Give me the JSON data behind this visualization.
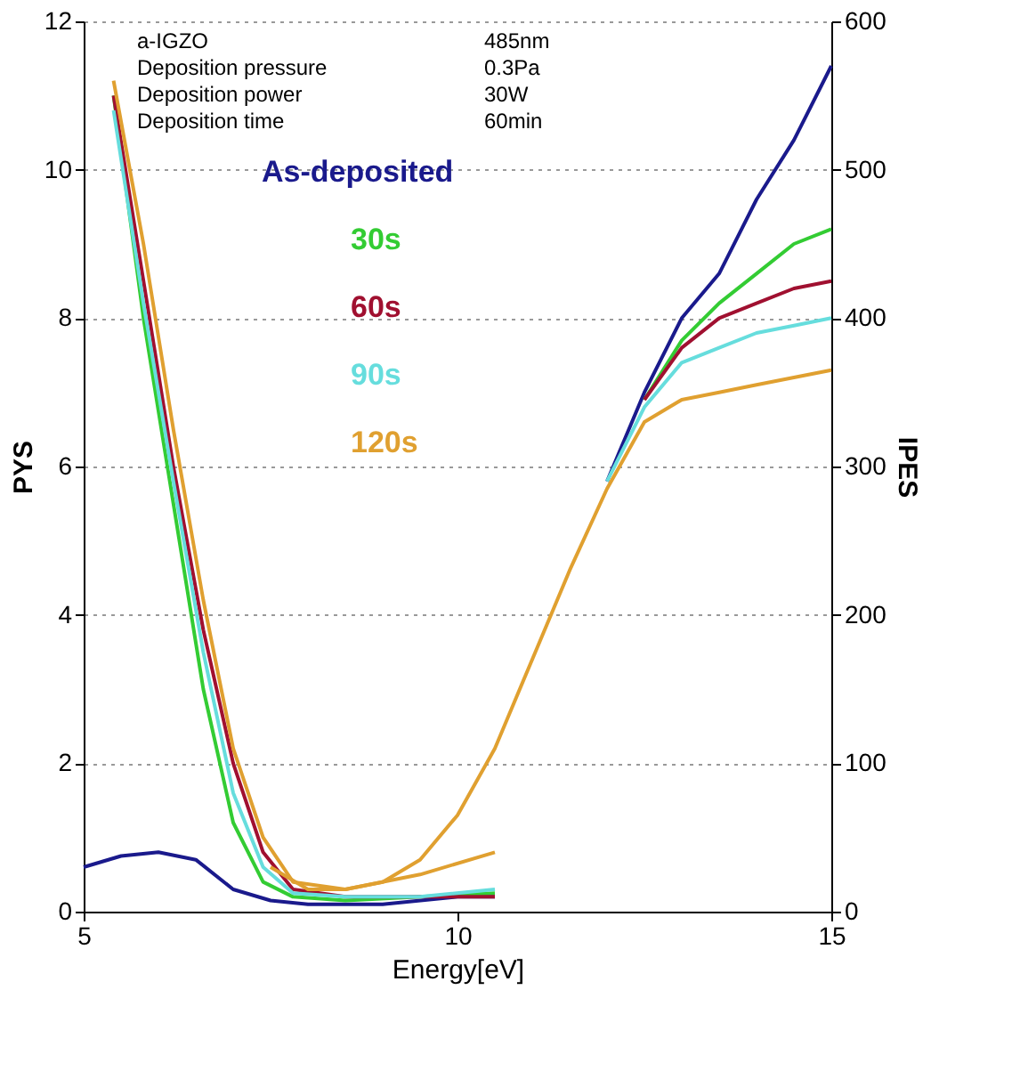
{
  "chart_data": {
    "type": "line",
    "xlabel": "Energy[eV]",
    "ylabel": "PYS",
    "y2label": "IPES",
    "xlim": [
      5,
      15
    ],
    "xticks": [
      5,
      10,
      15
    ],
    "ylim": [
      0,
      12
    ],
    "yticks": [
      0,
      2,
      4,
      6,
      8,
      10,
      12
    ],
    "y2lim": [
      0,
      600
    ],
    "y2ticks": [
      0,
      100,
      200,
      300,
      400,
      500,
      600
    ],
    "grid": "y",
    "legend": false,
    "marker": "none",
    "line_style": "solid",
    "annotations": [
      "a-IGZO",
      "485nm",
      "Deposition pressure",
      "0.3Pa",
      "Deposition power",
      "30W",
      "Deposition time",
      "60min"
    ],
    "series": [
      {
        "color": "#1a1a8c",
        "x": [
          5,
          5.5,
          6,
          6.5,
          7,
          7.5,
          8,
          9,
          10,
          10.5
        ],
        "values": [
          0.6,
          0.75,
          0.8,
          0.7,
          0.3,
          0.15,
          0.1,
          0.1,
          0.2,
          0.2
        ]
      },
      {
        "color": "#33cc33",
        "x": [
          5.4,
          5.8,
          6.2,
          6.6,
          7,
          7.4,
          7.8,
          8.5,
          9.5,
          10.5
        ],
        "values": [
          11,
          8,
          5.5,
          3,
          1.2,
          0.4,
          0.2,
          0.15,
          0.2,
          0.25
        ]
      },
      {
        "color": "#a01030",
        "x": [
          5.4,
          5.8,
          6.2,
          6.6,
          7,
          7.4,
          7.8,
          8.5,
          9.5,
          10.5
        ],
        "values": [
          11,
          8.5,
          6,
          3.8,
          2,
          0.8,
          0.3,
          0.2,
          0.2,
          0.2
        ]
      },
      {
        "color": "#66dddd",
        "x": [
          5.4,
          5.8,
          6.2,
          6.6,
          7,
          7.4,
          7.8,
          8.5,
          9.5,
          10.5
        ],
        "values": [
          10.8,
          8.2,
          5.8,
          3.5,
          1.6,
          0.6,
          0.25,
          0.2,
          0.2,
          0.3
        ]
      },
      {
        "color": "#e0a030",
        "x": [
          5.4,
          5.8,
          6.2,
          6.6,
          7,
          7.4,
          7.8,
          8.5,
          9.5,
          10.5
        ],
        "values": [
          11.2,
          9,
          6.5,
          4.2,
          2.2,
          1.0,
          0.4,
          0.3,
          0.5,
          0.8
        ]
      },
      {
        "name": "As-deposited",
        "axis": "y2",
        "color": "#1a1a8c",
        "x": [
          12,
          12.5,
          13,
          13.5,
          14,
          14.5,
          15
        ],
        "values": [
          290,
          350,
          400,
          430,
          480,
          520,
          570
        ]
      },
      {
        "name": "30s",
        "axis": "y2",
        "color": "#33cc33",
        "x": [
          12.5,
          13,
          13.5,
          14,
          14.5,
          15
        ],
        "values": [
          345,
          385,
          410,
          430,
          450,
          460
        ]
      },
      {
        "name": "60s",
        "axis": "y2",
        "color": "#a01030",
        "x": [
          12.5,
          13,
          13.5,
          14,
          14.5,
          15
        ],
        "values": [
          345,
          380,
          400,
          410,
          420,
          425
        ]
      },
      {
        "name": "90s",
        "axis": "y2",
        "color": "#66dddd",
        "x": [
          12,
          12.5,
          13,
          13.5,
          14,
          14.5,
          15
        ],
        "values": [
          290,
          340,
          370,
          380,
          390,
          395,
          400
        ]
      },
      {
        "name": "120s",
        "axis": "y2",
        "color": "#e0a030",
        "x": [
          7.5,
          8,
          8.5,
          9,
          9.5,
          10,
          10.5,
          11,
          11.5,
          12,
          12.5,
          13,
          13.5,
          14,
          14.5,
          15
        ],
        "values": [
          30,
          15,
          15,
          20,
          35,
          65,
          110,
          170,
          230,
          285,
          330,
          345,
          350,
          355,
          360,
          365
        ]
      }
    ]
  }
}
